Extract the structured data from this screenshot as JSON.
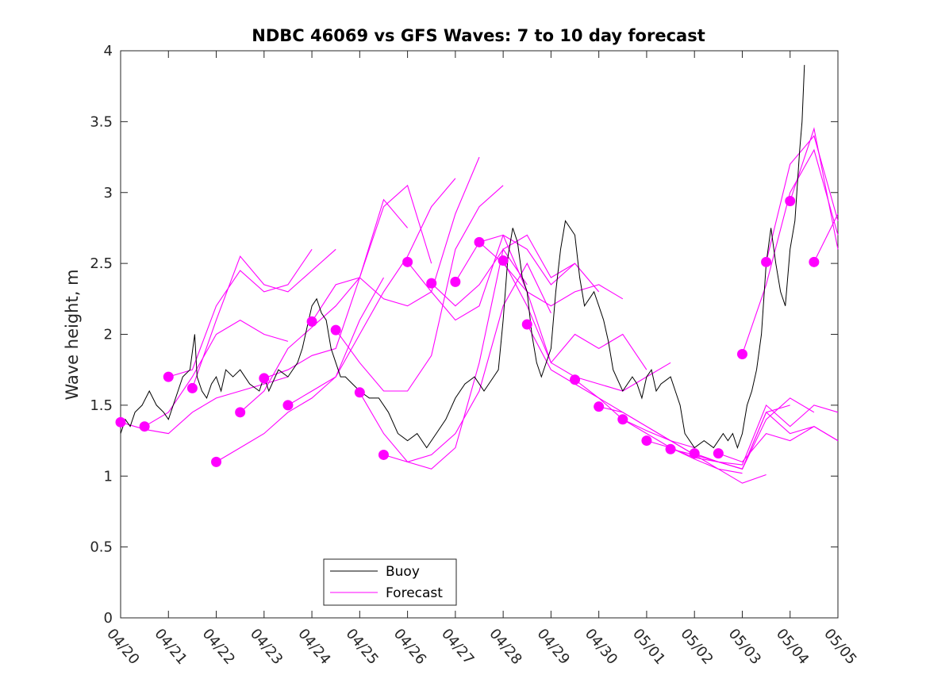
{
  "chart_data": {
    "type": "line",
    "title": "NDBC 46069 vs GFS Waves: 7 to 10 day forecast",
    "xlabel": "",
    "ylabel": "Wave height, m",
    "xlim": [
      0,
      15
    ],
    "ylim": [
      0,
      4
    ],
    "x_ticks": [
      {
        "value": 0,
        "label": "04/20"
      },
      {
        "value": 1,
        "label": "04/21"
      },
      {
        "value": 2,
        "label": "04/22"
      },
      {
        "value": 3,
        "label": "04/23"
      },
      {
        "value": 4,
        "label": "04/24"
      },
      {
        "value": 5,
        "label": "04/25"
      },
      {
        "value": 6,
        "label": "04/26"
      },
      {
        "value": 7,
        "label": "04/27"
      },
      {
        "value": 8,
        "label": "04/28"
      },
      {
        "value": 9,
        "label": "04/29"
      },
      {
        "value": 10,
        "label": "04/30"
      },
      {
        "value": 11,
        "label": "05/01"
      },
      {
        "value": 12,
        "label": "05/02"
      },
      {
        "value": 13,
        "label": "05/03"
      },
      {
        "value": 14,
        "label": "05/04"
      },
      {
        "value": 15,
        "label": "05/05"
      }
    ],
    "y_ticks": [
      {
        "value": 0,
        "label": "0"
      },
      {
        "value": 0.5,
        "label": "0.5"
      },
      {
        "value": 1,
        "label": "1"
      },
      {
        "value": 1.5,
        "label": "1.5"
      },
      {
        "value": 2,
        "label": "2"
      },
      {
        "value": 2.5,
        "label": "2.5"
      },
      {
        "value": 3,
        "label": "3"
      },
      {
        "value": 3.5,
        "label": "3.5"
      },
      {
        "value": 4,
        "label": "4"
      }
    ],
    "grid": false,
    "legend": {
      "position": "bottom-left",
      "entries": [
        "Buoy",
        "Forecast"
      ]
    },
    "colors": {
      "buoy": "#000000",
      "forecast": "#ff00ff"
    },
    "series": [
      {
        "name": "Buoy",
        "x": [
          0,
          0.1,
          0.2,
          0.3,
          0.45,
          0.6,
          0.75,
          0.9,
          1.0,
          1.1,
          1.2,
          1.3,
          1.45,
          1.55,
          1.6,
          1.7,
          1.8,
          1.9,
          2.0,
          2.1,
          2.2,
          2.35,
          2.5,
          2.7,
          2.9,
          3.0,
          3.1,
          3.3,
          3.5,
          3.7,
          3.8,
          3.9,
          4.0,
          4.1,
          4.2,
          4.3,
          4.4,
          4.5,
          4.6,
          4.7,
          4.85,
          5.0,
          5.2,
          5.4,
          5.6,
          5.8,
          6.0,
          6.2,
          6.4,
          6.6,
          6.8,
          7.0,
          7.2,
          7.4,
          7.6,
          7.8,
          7.9,
          8.0,
          8.1,
          8.2,
          8.3,
          8.4,
          8.5,
          8.6,
          8.7,
          8.8,
          9.0,
          9.1,
          9.2,
          9.3,
          9.5,
          9.6,
          9.7,
          9.8,
          9.9,
          10.0,
          10.1,
          10.2,
          10.3,
          10.5,
          10.7,
          10.8,
          10.9,
          11.0,
          11.1,
          11.2,
          11.3,
          11.5,
          11.6,
          11.7,
          11.8,
          11.9,
          12.0,
          12.2,
          12.4,
          12.6,
          12.7,
          12.8,
          12.9,
          13.0,
          13.1,
          13.2,
          13.3,
          13.4,
          13.5,
          13.6,
          13.7,
          13.8,
          13.9,
          14.0,
          14.1,
          14.2,
          14.25,
          14.3
        ],
        "values": [
          1.3,
          1.4,
          1.35,
          1.45,
          1.5,
          1.6,
          1.5,
          1.45,
          1.4,
          1.5,
          1.6,
          1.7,
          1.75,
          2.0,
          1.7,
          1.6,
          1.55,
          1.65,
          1.7,
          1.6,
          1.75,
          1.7,
          1.75,
          1.65,
          1.6,
          1.7,
          1.6,
          1.75,
          1.7,
          1.8,
          1.9,
          2.05,
          2.2,
          2.25,
          2.15,
          2.1,
          1.9,
          1.8,
          1.7,
          1.7,
          1.65,
          1.6,
          1.55,
          1.55,
          1.45,
          1.3,
          1.25,
          1.3,
          1.2,
          1.3,
          1.4,
          1.55,
          1.65,
          1.7,
          1.6,
          1.7,
          1.75,
          2.1,
          2.55,
          2.75,
          2.65,
          2.4,
          2.3,
          2.0,
          1.8,
          1.7,
          1.9,
          2.3,
          2.6,
          2.8,
          2.7,
          2.4,
          2.2,
          2.25,
          2.3,
          2.2,
          2.1,
          1.95,
          1.75,
          1.6,
          1.7,
          1.65,
          1.55,
          1.7,
          1.75,
          1.6,
          1.65,
          1.7,
          1.6,
          1.5,
          1.3,
          1.25,
          1.2,
          1.25,
          1.2,
          1.3,
          1.25,
          1.3,
          1.2,
          1.3,
          1.5,
          1.6,
          1.75,
          2.0,
          2.5,
          2.75,
          2.5,
          2.3,
          2.2,
          2.6,
          2.8,
          3.3,
          3.5,
          3.9
        ]
      }
    ],
    "forecast_runs": [
      {
        "x": [
          0,
          0.5,
          1.0,
          1.5,
          2.0,
          2.5,
          3.0,
          3.5
        ],
        "values": [
          1.38,
          1.33,
          1.3,
          1.45,
          1.55,
          1.6,
          1.65,
          1.7
        ]
      },
      {
        "x": [
          0.5,
          1.0,
          1.5,
          2.0,
          2.5,
          3.0,
          3.5
        ],
        "values": [
          1.35,
          1.45,
          1.7,
          2.0,
          2.1,
          2.0,
          1.95
        ]
      },
      {
        "x": [
          1.0,
          1.5,
          2.0,
          2.5,
          3.0,
          3.5,
          4.0
        ],
        "values": [
          1.7,
          1.75,
          2.2,
          2.45,
          2.3,
          2.35,
          2.6
        ]
      },
      {
        "x": [
          1.5,
          2.0,
          2.5,
          3.0,
          3.5,
          4.0,
          4.5
        ],
        "values": [
          1.62,
          2.1,
          2.55,
          2.35,
          2.3,
          2.45,
          2.6
        ]
      },
      {
        "x": [
          2.0,
          2.5,
          3.0,
          3.5,
          4.0,
          4.5,
          5.0,
          5.5
        ],
        "values": [
          1.1,
          1.2,
          1.3,
          1.45,
          1.55,
          1.7,
          2.1,
          2.4
        ]
      },
      {
        "x": [
          2.5,
          3.0,
          3.5,
          4.0,
          4.5,
          5.0,
          5.5,
          6.0
        ],
        "values": [
          1.45,
          1.6,
          1.9,
          2.05,
          2.2,
          2.4,
          2.95,
          2.75
        ]
      },
      {
        "x": [
          3.0,
          3.5,
          4.0,
          4.5,
          5.0,
          5.5,
          6.0,
          6.5
        ],
        "values": [
          1.69,
          1.75,
          1.85,
          1.9,
          2.4,
          2.9,
          3.05,
          2.5
        ]
      },
      {
        "x": [
          3.5,
          4.0,
          4.5,
          5.0,
          5.5,
          6.0,
          6.5,
          7.0
        ],
        "values": [
          1.5,
          1.6,
          1.7,
          2.0,
          2.3,
          2.55,
          2.9,
          3.1
        ]
      },
      {
        "x": [
          4.0,
          4.5,
          5.0,
          5.5,
          6.0,
          6.5,
          7.0,
          7.5
        ],
        "values": [
          2.09,
          2.35,
          2.4,
          2.25,
          2.2,
          2.3,
          2.85,
          3.25
        ]
      },
      {
        "x": [
          4.5,
          5.0,
          5.5,
          6.0,
          6.5,
          7.0,
          7.5,
          8.0
        ],
        "values": [
          2.03,
          1.8,
          1.6,
          1.6,
          1.85,
          2.6,
          2.9,
          3.05
        ]
      },
      {
        "x": [
          5.0,
          5.5,
          6.0,
          6.5,
          7.0,
          7.5,
          8.0,
          8.5
        ],
        "values": [
          1.59,
          1.3,
          1.1,
          1.05,
          1.2,
          1.8,
          2.6,
          2.35
        ]
      },
      {
        "x": [
          5.5,
          6.0,
          6.5,
          7.0,
          7.5,
          8.0,
          8.5,
          9.0
        ],
        "values": [
          1.15,
          1.1,
          1.15,
          1.3,
          1.6,
          2.2,
          2.5,
          2.15
        ]
      },
      {
        "x": [
          6.0,
          6.5,
          7.0,
          7.5,
          8.0,
          8.5,
          9.0,
          9.5
        ],
        "values": [
          2.51,
          2.3,
          2.1,
          2.2,
          2.7,
          2.6,
          2.35,
          2.5
        ]
      },
      {
        "x": [
          6.5,
          7.0,
          7.5,
          8.0,
          8.5,
          9.0,
          9.5,
          10.0
        ],
        "values": [
          2.36,
          2.2,
          2.35,
          2.6,
          2.7,
          2.4,
          2.5,
          2.3
        ]
      },
      {
        "x": [
          7.0,
          7.5,
          8.0,
          8.5,
          9.0,
          9.5,
          10.0,
          10.5
        ],
        "values": [
          2.37,
          2.65,
          2.5,
          2.3,
          2.2,
          2.3,
          2.35,
          2.25
        ]
      },
      {
        "x": [
          7.5,
          8.0,
          8.5,
          9.0,
          9.5,
          10.0,
          10.5,
          11.0
        ],
        "values": [
          2.65,
          2.7,
          2.3,
          1.8,
          2.0,
          1.9,
          2.0,
          1.75
        ]
      },
      {
        "x": [
          8.0,
          8.5,
          9.0,
          9.5,
          10.0,
          10.5,
          11.0,
          11.5
        ],
        "values": [
          2.52,
          2.2,
          1.8,
          1.7,
          1.65,
          1.6,
          1.7,
          1.8
        ]
      },
      {
        "x": [
          8.5,
          9.0,
          9.5,
          10.0,
          10.5,
          11.0,
          11.5,
          12.0
        ],
        "values": [
          2.07,
          1.75,
          1.65,
          1.55,
          1.45,
          1.35,
          1.25,
          1.2
        ]
      },
      {
        "x": [
          9.5,
          10.0,
          10.5,
          11.0,
          11.5,
          12.0,
          12.5,
          13.0
        ],
        "values": [
          1.68,
          1.55,
          1.4,
          1.3,
          1.2,
          1.12,
          1.05,
          1.02
        ]
      },
      {
        "x": [
          10.0,
          10.5,
          11.0,
          11.5,
          12.0,
          12.5,
          13.0,
          13.5
        ],
        "values": [
          1.49,
          1.45,
          1.35,
          1.25,
          1.15,
          1.05,
          0.95,
          1.01
        ]
      },
      {
        "x": [
          10.5,
          11.0,
          11.5,
          12.0,
          12.5,
          13.0,
          13.5,
          14.0
        ],
        "values": [
          1.4,
          1.32,
          1.25,
          1.15,
          1.1,
          1.05,
          1.45,
          1.5
        ]
      },
      {
        "x": [
          11.0,
          11.5,
          12.0,
          12.5,
          13.0,
          13.5,
          14.0,
          14.5
        ],
        "values": [
          1.25,
          1.2,
          1.13,
          1.1,
          1.05,
          1.4,
          1.55,
          1.45
        ]
      },
      {
        "x": [
          11.5,
          12.0,
          12.5,
          13.0,
          13.5,
          14.0,
          14.5,
          15.0
        ],
        "values": [
          1.19,
          1.15,
          1.1,
          1.08,
          1.5,
          1.35,
          1.5,
          1.45
        ]
      },
      {
        "x": [
          12.0,
          12.5,
          13.0,
          13.5,
          14.0,
          14.5,
          15.0
        ],
        "values": [
          1.16,
          1.1,
          1.05,
          1.45,
          1.3,
          1.35,
          1.25
        ]
      },
      {
        "x": [
          12.5,
          13.0,
          13.5,
          14.0,
          14.5,
          15.0
        ],
        "values": [
          1.16,
          1.1,
          1.3,
          1.25,
          1.35,
          1.25
        ]
      },
      {
        "x": [
          13.0,
          13.5,
          14.0,
          14.5,
          15.0
        ],
        "values": [
          1.86,
          2.35,
          3.0,
          3.3,
          2.7
        ]
      },
      {
        "x": [
          13.5,
          14.0,
          14.5,
          15.0
        ],
        "values": [
          2.51,
          3.2,
          3.4,
          2.8
        ]
      },
      {
        "x": [
          14.0,
          14.5,
          15.0
        ],
        "values": [
          2.94,
          3.45,
          2.6
        ]
      },
      {
        "x": [
          14.5,
          15.0
        ],
        "values": [
          2.51,
          2.85
        ]
      }
    ]
  }
}
